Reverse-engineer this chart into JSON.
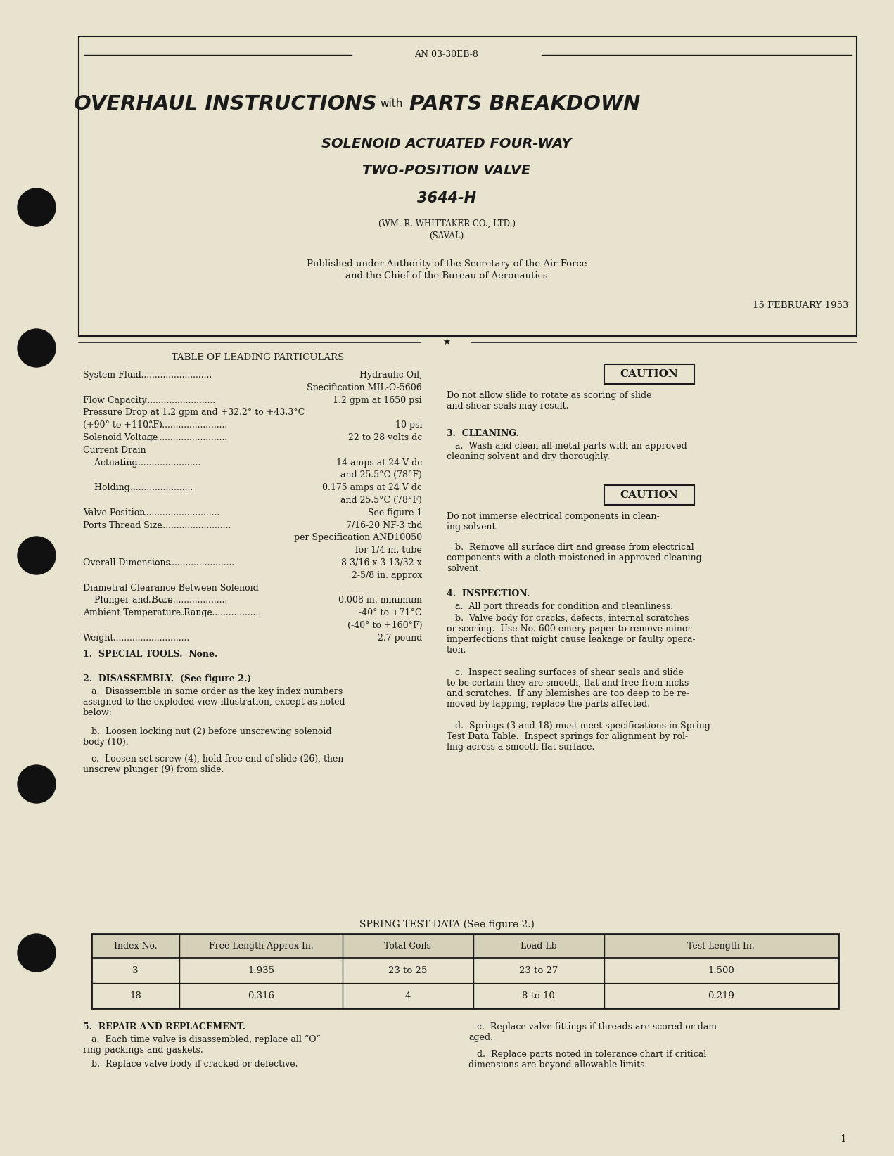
{
  "bg_color": "#e8e3ce",
  "text_color": "#1a1a1a",
  "doc_number": "AN 03-30EB-8",
  "title_line2": "SOLENOID ACTUATED FOUR-WAY",
  "title_line3": "TWO-POSITION VALVE",
  "title_line4": "3644-H",
  "subtitle1": "(WM. R. WHITTAKER CO., LTD.)",
  "subtitle2": "(SAVAL)",
  "published_line1": "Published under Authority of the Secretary of the Air Force",
  "published_line2": "and the Chief of the Bureau of Aeronautics",
  "date": "15 FEBRUARY 1953",
  "section_table_title": "TABLE OF LEADING PARTICULARS",
  "caution1": "Do not allow slide to rotate as scoring of slide\nand shear seals may result.",
  "section3_title": "3.  CLEANING.",
  "section3a": "   a.  Wash and clean all metal parts with an approved\ncleaning solvent and dry thoroughly.",
  "caution2": "Do not immerse electrical components in clean-\ning solvent.",
  "section3b": "   b.  Remove all surface dirt and grease from electrical\ncomponents with a cloth moistened in approved cleaning\nsolvent.",
  "section4_title": "4.  INSPECTION.",
  "section4a": "   a.  All port threads for condition and cleanliness.",
  "section4b": "   b.  Valve body for cracks, defects, internal scratches\nor scoring.  Use No. 600 emery paper to remove minor\nimperfections that might cause leakage or faulty opera-\ntion.",
  "section4c": "   c.  Inspect sealing surfaces of shear seals and slide\nto be certain they are smooth, flat and free from nicks\nand scratches.  If any blemishes are too deep to be re-\nmoved by lapping, replace the parts affected.",
  "section4d": "   d.  Springs (3 and 18) must meet specifications in Spring\nTest Data Table.  Inspect springs for alignment by rol-\nling across a smooth flat surface.",
  "section1_title": "1.  SPECIAL TOOLS.  None.",
  "section2_title": "2.  DISASSEMBLY.  (See figure 2.)",
  "section2a": "   a.  Disassemble in same order as the key index numbers\nassigned to the exploded view illustration, except as noted\nbelow:",
  "section2b": "   b.  Loosen locking nut (2) before unscrewing solenoid\nbody (10).",
  "section2c": "   c.  Loosen set screw (4), hold free end of slide (26), then\nunscrew plunger (9) from slide.",
  "spring_table_title": "SPRING TEST DATA (See figure 2.)",
  "spring_headers": [
    "Index No.",
    "Free Length Approx In.",
    "Total Coils",
    "Load Lb",
    "Test Length In."
  ],
  "spring_rows": [
    [
      "3",
      "1.935",
      "23 to 25",
      "23 to 27",
      "1.500"
    ],
    [
      "18",
      "0.316",
      "4",
      "8 to 10",
      "0.219"
    ]
  ],
  "section5_title": "5.  REPAIR AND REPLACEMENT.",
  "section5a": "   a.  Each time valve is disassembled, replace all “O”\nring packings and gaskets.",
  "section5b": "   b.  Replace valve body if cracked or defective.",
  "section5c": "   c.  Replace valve fittings if threads are scored or dam-\naged.",
  "section5d": "   d.  Replace parts noted in tolerance chart if critical\ndimensions are beyond allowable limits.",
  "page_number": "1",
  "table_rows": [
    {
      "label": "System Fluid",
      "dots": true,
      "value": "Hydraulic Oil,",
      "cont": "Specification MIL-O-5606"
    },
    {
      "label": "Flow Capacity",
      "dots": true,
      "value": "1.2 gpm at 1650 psi",
      "cont": null
    },
    {
      "label": "Pressure Drop at 1.2 gpm and +32.2° to +43.3°C",
      "dots": false,
      "value": null,
      "cont": null
    },
    {
      "label": "(+90° to +110°F)",
      "dots": true,
      "value": "10 psi",
      "cont": null
    },
    {
      "label": "Solenoid Voltage",
      "dots": true,
      "value": "22 to 28 volts dc",
      "cont": null
    },
    {
      "label": "Current Drain",
      "dots": false,
      "value": null,
      "cont": null
    },
    {
      "label": "    Actuating",
      "dots": true,
      "value": "14 amps at 24 V dc",
      "cont": "and 25.5°C (78°F)"
    },
    {
      "label": "    Holding",
      "dots": true,
      "value": "0.175 amps at 24 V dc",
      "cont": "and 25.5°C (78°F)"
    },
    {
      "label": "Valve Position",
      "dots": true,
      "value": "See figure 1",
      "cont": null
    },
    {
      "label": "Ports Thread Size",
      "dots": true,
      "value": "7/16-20 NF-3 thd",
      "cont": "per Specification AND10050\nfor 1/4 in. tube"
    },
    {
      "label": "Overall Dimensions",
      "dots": true,
      "value": "8-3/16 x 3-13/32 x",
      "cont": "2-5/8 in. approx"
    },
    {
      "label": "Diametral Clearance Between Solenoid",
      "dots": false,
      "value": null,
      "cont": null
    },
    {
      "label": "    Plunger and Bore",
      "dots": true,
      "value": "0.008 in. minimum",
      "cont": null
    },
    {
      "label": "Ambient Temperature Range",
      "dots": true,
      "value": "-40° to +71°C",
      "cont": "(-40° to +160°F)"
    },
    {
      "label": "Weight",
      "dots": true,
      "value": "2.7 pound",
      "cont": null
    }
  ]
}
